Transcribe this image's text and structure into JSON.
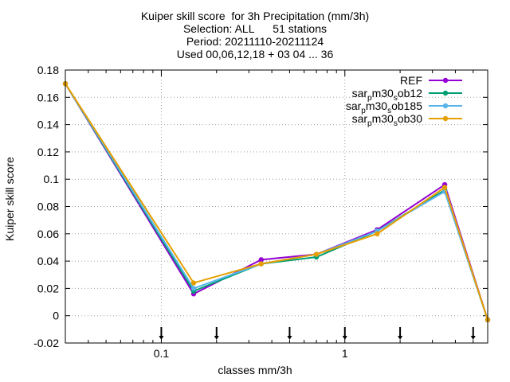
{
  "chart_data": {
    "type": "line",
    "title_lines": [
      "Kuiper skill score  for 3h Precipitation (mm/3h)",
      "Selection: ALL      51 stations",
      "Period: 20211110-20211124",
      "Used 00,06,12,18 + 03 04 ... 36"
    ],
    "xlabel": "classes mm/3h",
    "ylabel": "Kuiper skill score",
    "x_scale": "log",
    "xlim": [
      0.03,
      6.0
    ],
    "ylim": [
      -0.02,
      0.18
    ],
    "grid": true,
    "legend_position": "top-right",
    "y_ticks": [
      -0.02,
      0,
      0.02,
      0.04,
      0.06,
      0.08,
      0.1,
      0.12,
      0.14,
      0.16,
      0.18
    ],
    "y_tick_labels": [
      "-0.02",
      "0",
      "0.02",
      "0.04",
      "0.06",
      "0.08",
      "0.1",
      "0.12",
      "0.14",
      "0.16",
      "0.18"
    ],
    "x_ticks": [
      0.1,
      1
    ],
    "x_tick_labels": [
      "0.1",
      "1"
    ],
    "x": [
      0.03,
      0.15,
      0.35,
      0.7,
      1.5,
      3.5,
      6.0
    ],
    "threshold_markers_x": [
      0.1,
      0.2,
      0.5,
      1.0,
      2.0,
      5.0
    ],
    "series": [
      {
        "name": "REF",
        "color": "#9400d3",
        "values": [
          0.17,
          0.016,
          0.041,
          0.045,
          0.063,
          0.096,
          -0.003
        ]
      },
      {
        "name": "sar_p m30_s ob12",
        "color": "#009e73",
        "values": [
          0.17,
          0.018,
          0.038,
          0.043,
          0.062,
          0.092,
          -0.003
        ]
      },
      {
        "name": "sar_p m30_s ob185",
        "color": "#56b4e9",
        "values": [
          0.17,
          0.02,
          0.038,
          0.045,
          0.062,
          0.091,
          -0.003
        ]
      },
      {
        "name": "sar_p m30_s ob30",
        "color": "#e69f00",
        "values": [
          0.17,
          0.024,
          0.038,
          0.045,
          0.06,
          0.094,
          -0.003
        ]
      }
    ],
    "legend_entries": [
      {
        "base": "REF",
        "sub1": "",
        "mid": "",
        "sub2": "",
        "tail": ""
      },
      {
        "base": "sar",
        "sub1": "p",
        "mid": "m30",
        "sub2": "s",
        "tail": "ob12"
      },
      {
        "base": "sar",
        "sub1": "p",
        "mid": "m30",
        "sub2": "s",
        "tail": "ob185"
      },
      {
        "base": "sar",
        "sub1": "p",
        "mid": "m30",
        "sub2": "s",
        "tail": "ob30"
      }
    ]
  }
}
